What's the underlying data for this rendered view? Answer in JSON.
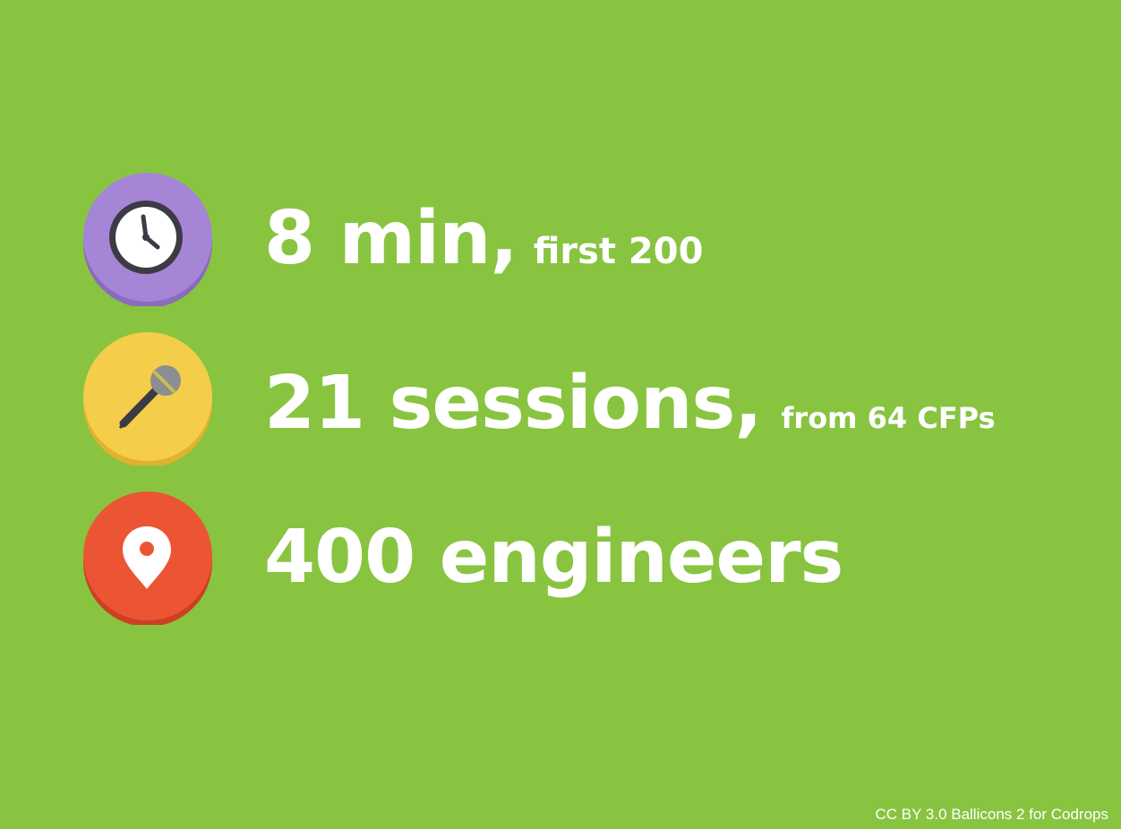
{
  "stats": [
    {
      "headline": "8 min,",
      "detail": "first 200",
      "icon": "clock-icon",
      "badge_color": "#a585d6",
      "badge_shadow": "#8a6bbd"
    },
    {
      "headline": "21 sessions,",
      "detail": "from 64 CFPs",
      "icon": "microphone-icon",
      "badge_color": "#f4cd4a",
      "badge_shadow": "#e0b22e"
    },
    {
      "headline": "400 engineers",
      "detail": "",
      "icon": "map-pin-icon",
      "badge_color": "#ec5534",
      "badge_shadow": "#cc3f22"
    }
  ],
  "credit": "CC BY 3.0 Ballicons 2 for Codrops",
  "colors": {
    "background": "#88c440",
    "text": "#ffffff"
  }
}
